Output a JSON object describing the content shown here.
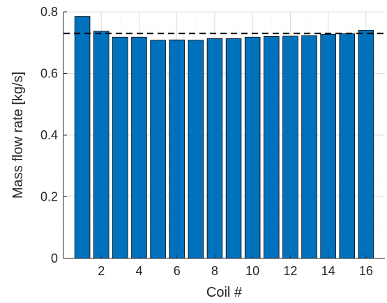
{
  "chart_data": {
    "type": "bar",
    "categories": [
      1,
      2,
      3,
      4,
      5,
      6,
      7,
      8,
      9,
      10,
      11,
      12,
      13,
      14,
      15,
      16
    ],
    "values": [
      0.785,
      0.737,
      0.718,
      0.718,
      0.708,
      0.709,
      0.708,
      0.713,
      0.713,
      0.718,
      0.72,
      0.721,
      0.723,
      0.727,
      0.729,
      0.74
    ],
    "reference_line": {
      "value": 0.73,
      "style": "dashed",
      "color": "#000000"
    },
    "xlabel": "Coil #",
    "ylabel": "Mass flow rate [kg/s]",
    "xlim": [
      0,
      17
    ],
    "ylim": [
      0,
      0.8
    ],
    "xticks": [
      2,
      4,
      6,
      8,
      10,
      12,
      14,
      16
    ],
    "yticks": [
      0,
      0.2,
      0.4,
      0.6,
      0.8
    ],
    "ytick_labels": [
      "0",
      "0.2",
      "0.4",
      "0.6",
      "0.8"
    ],
    "grid": true,
    "minor_grid": true,
    "bar_color": "#0072BD",
    "bar_edge_color": "#000000"
  }
}
